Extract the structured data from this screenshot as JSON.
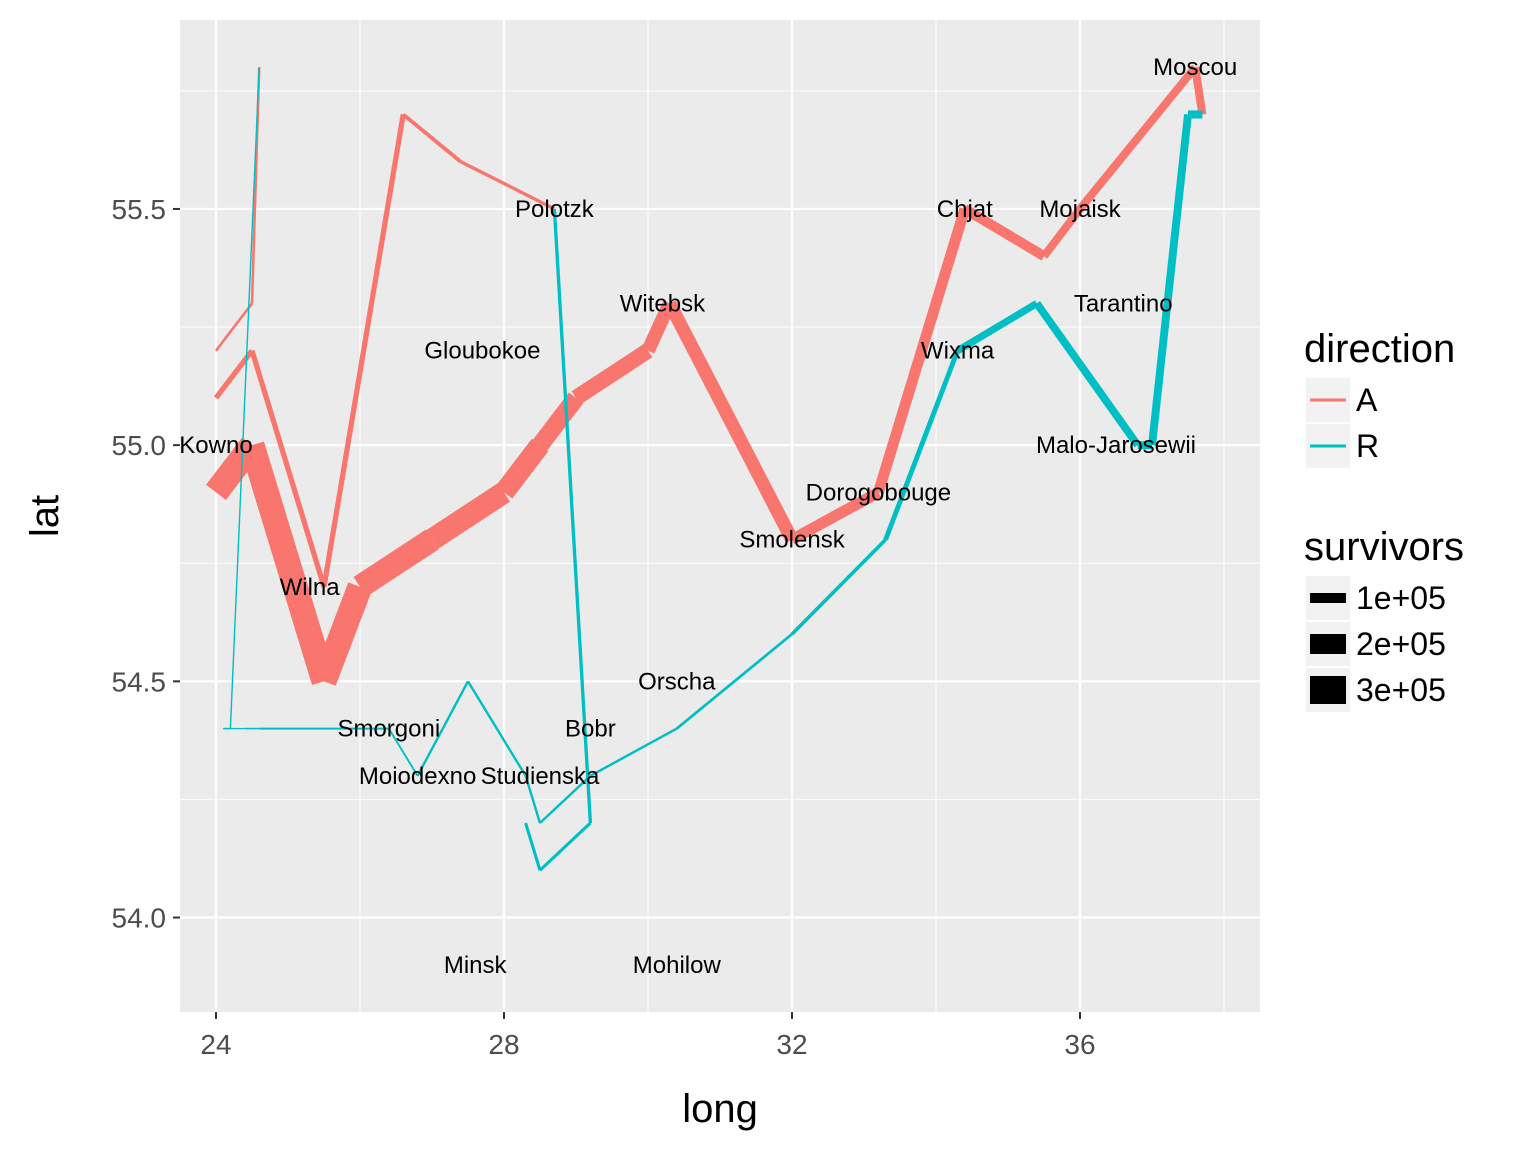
{
  "chart_data": {
    "type": "line",
    "xlabel": "long",
    "ylabel": "lat",
    "xlim": [
      23.5,
      38.5
    ],
    "ylim": [
      53.8,
      55.9
    ],
    "x_ticks": [
      24,
      28,
      32,
      36
    ],
    "x_tick_labels": [
      "24",
      "28",
      "32",
      "36"
    ],
    "y_ticks": [
      54.0,
      54.5,
      55.0,
      55.5
    ],
    "y_tick_labels": [
      "54.0",
      "54.5",
      "55.0",
      "55.5"
    ],
    "grid": true,
    "legend_position": "right",
    "colors": {
      "A": "#F8766D",
      "R": "#00BFC4",
      "panel": "#EBEBEB",
      "grid": "#FFFFFF"
    },
    "legends": {
      "direction": {
        "title": "direction",
        "items": [
          "A",
          "R"
        ]
      },
      "survivors": {
        "title": "survivors",
        "items": [
          "1e+05",
          "2e+05",
          "3e+05"
        ],
        "values": [
          100000,
          200000,
          300000
        ]
      }
    },
    "cities": [
      {
        "name": "Kowno",
        "long": 24.0,
        "lat": 55.0
      },
      {
        "name": "Wilna",
        "long": 25.3,
        "lat": 54.7
      },
      {
        "name": "Smorgoni",
        "long": 26.4,
        "lat": 54.4
      },
      {
        "name": "Moiodexno",
        "long": 26.8,
        "lat": 54.3
      },
      {
        "name": "Gloubokoe",
        "long": 27.7,
        "lat": 55.2
      },
      {
        "name": "Minsk",
        "long": 27.6,
        "lat": 53.9
      },
      {
        "name": "Studienska",
        "long": 28.5,
        "lat": 54.3
      },
      {
        "name": "Polotzk",
        "long": 28.7,
        "lat": 55.5
      },
      {
        "name": "Bobr",
        "long": 29.2,
        "lat": 54.4
      },
      {
        "name": "Witebsk",
        "long": 30.2,
        "lat": 55.3
      },
      {
        "name": "Orscha",
        "long": 30.4,
        "lat": 54.5
      },
      {
        "name": "Mohilow",
        "long": 30.4,
        "lat": 53.9
      },
      {
        "name": "Smolensk",
        "long": 32.0,
        "lat": 54.8
      },
      {
        "name": "Dorogobouge",
        "long": 33.2,
        "lat": 54.9
      },
      {
        "name": "Wixma",
        "long": 34.3,
        "lat": 55.2
      },
      {
        "name": "Chjat",
        "long": 34.4,
        "lat": 55.5
      },
      {
        "name": "Mojaisk",
        "long": 36.0,
        "lat": 55.5
      },
      {
        "name": "Moscou",
        "long": 37.6,
        "lat": 55.8
      },
      {
        "name": "Tarantino",
        "long": 36.6,
        "lat": 55.3
      },
      {
        "name": "Malo-Jarosewii",
        "long": 36.5,
        "lat": 55.0
      }
    ],
    "series": [
      {
        "direction": "A",
        "points": [
          [
            24.0,
            54.9,
            340000
          ],
          [
            24.5,
            55.0,
            340000
          ],
          [
            25.5,
            54.5,
            340000
          ],
          [
            26.0,
            54.7,
            320000
          ],
          [
            27.0,
            54.8,
            300000
          ],
          [
            28.0,
            54.9,
            280000
          ],
          [
            28.5,
            55.0,
            240000
          ],
          [
            29.0,
            55.1,
            210000
          ],
          [
            30.0,
            55.2,
            180000
          ],
          [
            30.3,
            55.3,
            175000
          ],
          [
            32.0,
            54.8,
            145000
          ],
          [
            33.2,
            54.9,
            140000
          ],
          [
            34.4,
            55.5,
            127100
          ],
          [
            35.5,
            55.4,
            100000
          ],
          [
            36.0,
            55.5,
            100000
          ],
          [
            37.6,
            55.8,
            100000
          ],
          [
            37.7,
            55.7,
            100000
          ]
        ]
      },
      {
        "direction": "R",
        "points": [
          [
            37.7,
            55.7,
            100000
          ],
          [
            37.5,
            55.7,
            98000
          ],
          [
            37.0,
            55.0,
            97000
          ],
          [
            36.8,
            55.0,
            96000
          ],
          [
            35.4,
            55.3,
            87000
          ],
          [
            34.3,
            55.2,
            55000
          ],
          [
            33.3,
            54.8,
            37000
          ],
          [
            32.0,
            54.6,
            24000
          ],
          [
            30.4,
            54.4,
            20000
          ],
          [
            29.2,
            54.3,
            20000
          ],
          [
            28.5,
            54.2,
            20000
          ],
          [
            28.3,
            54.3,
            20000
          ],
          [
            27.5,
            54.5,
            20000
          ],
          [
            26.8,
            54.3,
            12000
          ],
          [
            26.4,
            54.4,
            14000
          ],
          [
            24.6,
            54.4,
            8000
          ],
          [
            24.4,
            54.4,
            4000
          ],
          [
            24.2,
            54.4,
            4000
          ],
          [
            24.1,
            54.4,
            4000
          ]
        ]
      },
      {
        "direction": "A",
        "points": [
          [
            24.0,
            55.1,
            60000
          ],
          [
            24.5,
            55.2,
            60000
          ],
          [
            25.5,
            54.7,
            60000
          ],
          [
            26.6,
            55.7,
            40000
          ],
          [
            27.4,
            55.6,
            33000
          ],
          [
            28.7,
            55.5,
            33000
          ]
        ]
      },
      {
        "direction": "R",
        "points": [
          [
            28.7,
            55.5,
            33000
          ],
          [
            29.2,
            54.2,
            30000
          ],
          [
            28.5,
            54.1,
            30000
          ],
          [
            28.3,
            54.2,
            28000
          ]
        ]
      },
      {
        "direction": "A",
        "points": [
          [
            24.0,
            55.2,
            22000
          ],
          [
            24.5,
            55.3,
            22000
          ],
          [
            24.6,
            55.8,
            6000
          ]
        ]
      },
      {
        "direction": "R",
        "points": [
          [
            24.6,
            55.8,
            6000
          ],
          [
            24.2,
            54.4,
            6000
          ],
          [
            24.1,
            54.4,
            6000
          ]
        ]
      }
    ]
  }
}
